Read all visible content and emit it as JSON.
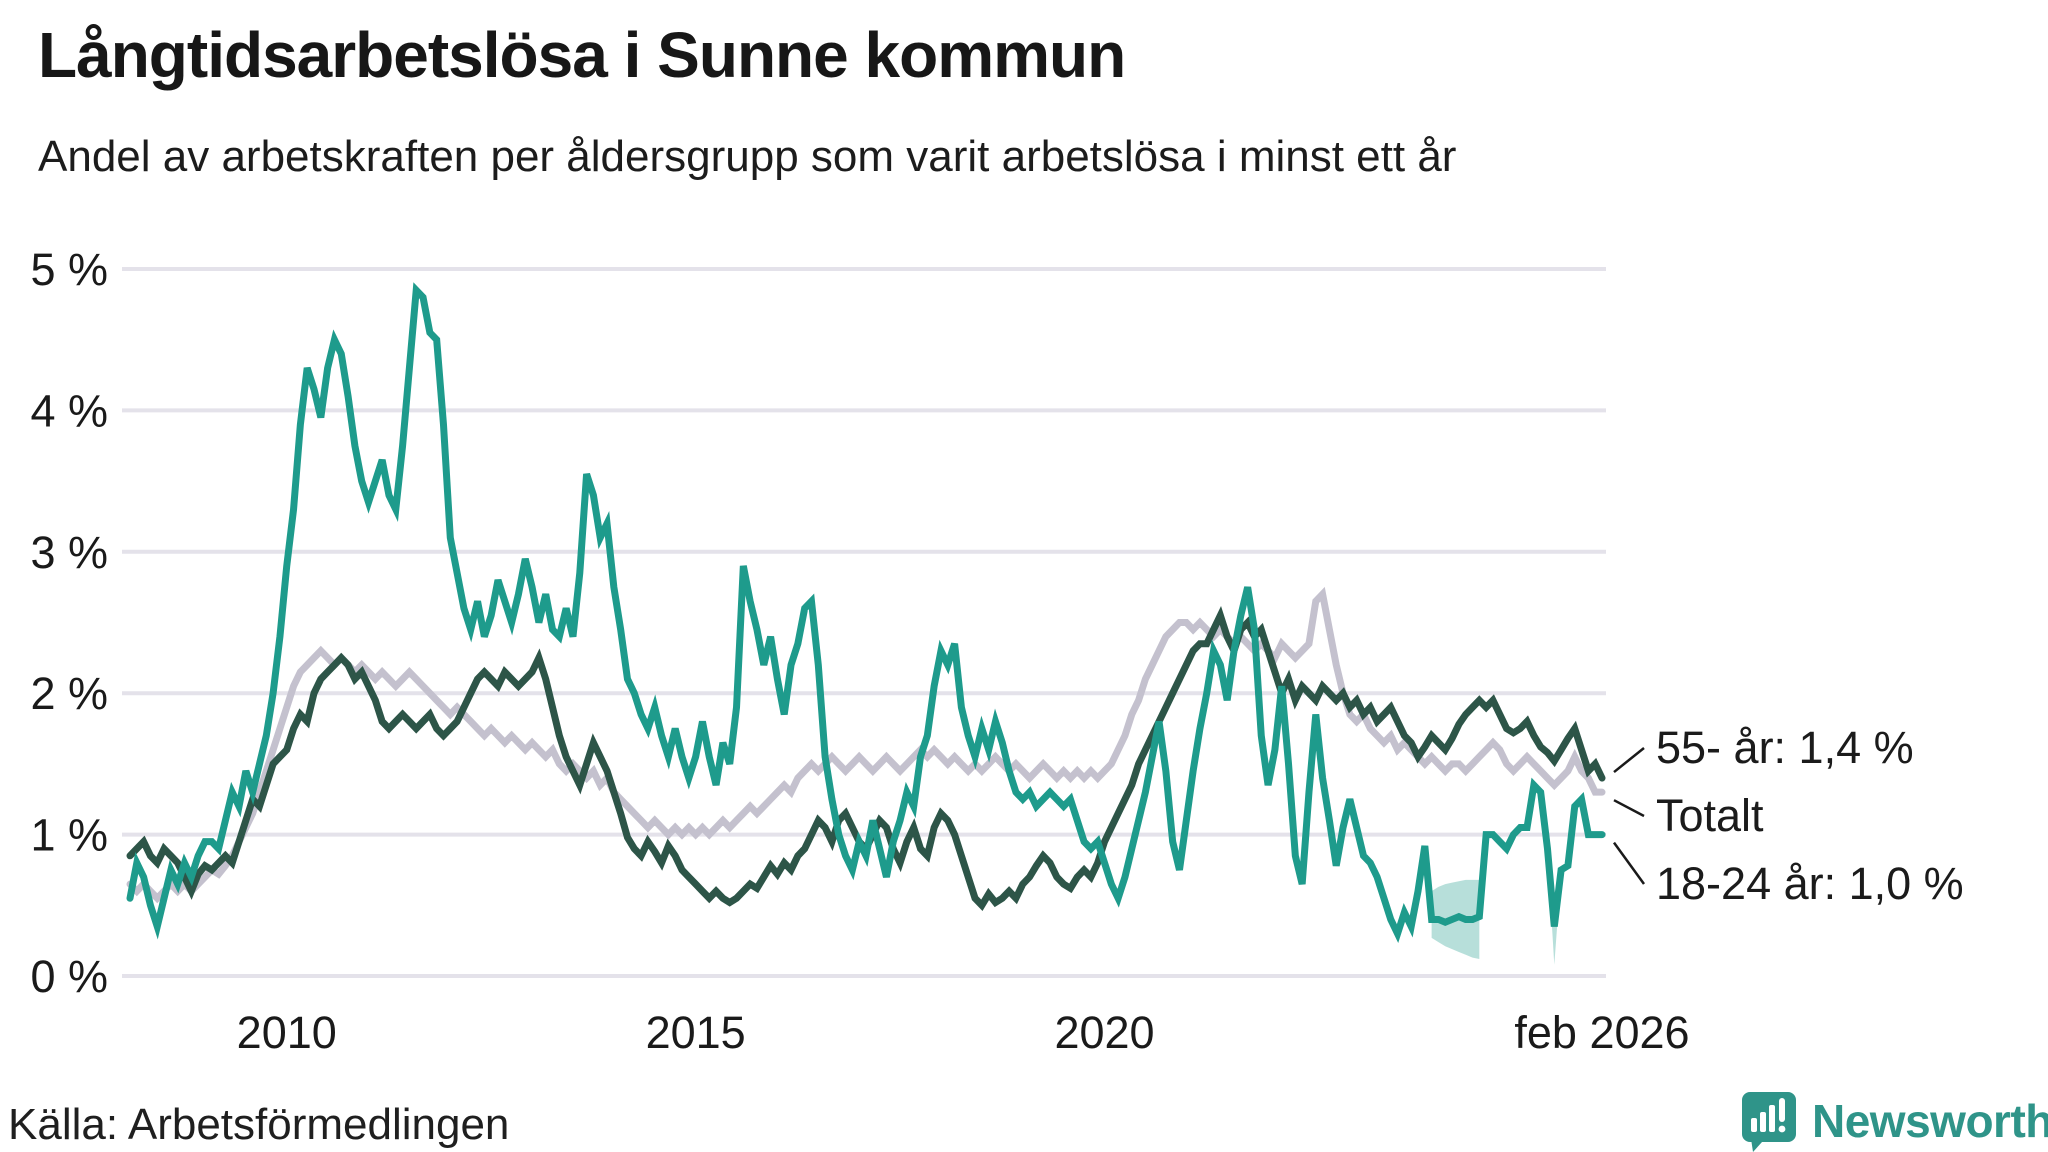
{
  "header": {
    "title": "Långtidsarbetslösa i Sunne kommun",
    "subtitle": "Andel av arbetskraften per åldersgrupp som varit arbetslösa i minst ett år"
  },
  "footer": {
    "source": "Källa: Arbetsförmedlingen",
    "brand": "Newsworthy"
  },
  "colors": {
    "teal": "#1e9b8c",
    "dark_green": "#2d5548",
    "gray": "#c4c1ce",
    "gridline": "#e4e2ea",
    "band_fill": "#1e9b8c",
    "leader": "#1a1a1a",
    "brand_teal": "#2f9489"
  },
  "chart_data": {
    "type": "line",
    "title": "Långtidsarbetslösa i Sunne kommun",
    "subtitle": "Andel av arbetskraften per åldersgrupp som varit arbetslösa i minst ett år",
    "unit": "% av arbetskraften",
    "freq": "monthly",
    "start": "2008-02",
    "end": "2026-02",
    "ylim": [
      0,
      5
    ],
    "grid": true,
    "yticks": [
      {
        "v": 5,
        "label": "5 %"
      },
      {
        "v": 4,
        "label": "4 %"
      },
      {
        "v": 3,
        "label": "3 %"
      },
      {
        "v": 2,
        "label": "2 %"
      },
      {
        "v": 1,
        "label": "1 %"
      },
      {
        "v": 0,
        "label": "0 %"
      }
    ],
    "xticks": [
      {
        "t": 23,
        "label": "2010"
      },
      {
        "t": 83,
        "label": "2015"
      },
      {
        "t": 143,
        "label": "2020"
      },
      {
        "t": 216,
        "label": "feb 2026"
      }
    ],
    "series": [
      {
        "name": "Totalt",
        "color_key": "gray",
        "values": [
          0.65,
          0.6,
          0.65,
          0.6,
          0.55,
          0.6,
          0.65,
          0.6,
          0.65,
          0.6,
          0.65,
          0.7,
          0.75,
          0.72,
          0.78,
          0.85,
          0.95,
          1.05,
          1.15,
          1.3,
          1.45,
          1.6,
          1.75,
          1.9,
          2.05,
          2.15,
          2.2,
          2.25,
          2.3,
          2.25,
          2.2,
          2.25,
          2.2,
          2.15,
          2.2,
          2.15,
          2.1,
          2.15,
          2.1,
          2.05,
          2.1,
          2.15,
          2.1,
          2.05,
          2.0,
          1.95,
          1.9,
          1.85,
          1.9,
          1.85,
          1.8,
          1.75,
          1.7,
          1.75,
          1.7,
          1.65,
          1.7,
          1.65,
          1.6,
          1.65,
          1.6,
          1.55,
          1.6,
          1.5,
          1.45,
          1.5,
          1.45,
          1.4,
          1.45,
          1.35,
          1.4,
          1.3,
          1.25,
          1.2,
          1.15,
          1.1,
          1.05,
          1.1,
          1.05,
          1.0,
          1.05,
          1.0,
          1.05,
          1.0,
          1.05,
          1.0,
          1.05,
          1.1,
          1.05,
          1.1,
          1.15,
          1.2,
          1.15,
          1.2,
          1.25,
          1.3,
          1.35,
          1.3,
          1.4,
          1.45,
          1.5,
          1.45,
          1.5,
          1.55,
          1.5,
          1.45,
          1.5,
          1.55,
          1.5,
          1.45,
          1.5,
          1.55,
          1.5,
          1.45,
          1.5,
          1.55,
          1.6,
          1.55,
          1.6,
          1.55,
          1.5,
          1.55,
          1.5,
          1.45,
          1.5,
          1.45,
          1.5,
          1.55,
          1.5,
          1.45,
          1.5,
          1.45,
          1.4,
          1.45,
          1.5,
          1.45,
          1.4,
          1.45,
          1.4,
          1.45,
          1.4,
          1.45,
          1.4,
          1.45,
          1.5,
          1.6,
          1.7,
          1.85,
          1.95,
          2.1,
          2.2,
          2.3,
          2.4,
          2.45,
          2.5,
          2.5,
          2.45,
          2.5,
          2.45,
          2.4,
          2.45,
          2.4,
          2.35,
          2.4,
          2.35,
          2.3,
          2.35,
          2.3,
          2.25,
          2.35,
          2.3,
          2.25,
          2.3,
          2.35,
          2.65,
          2.7,
          2.45,
          2.2,
          2.0,
          1.85,
          1.8,
          1.85,
          1.75,
          1.7,
          1.65,
          1.7,
          1.6,
          1.65,
          1.6,
          1.55,
          1.5,
          1.55,
          1.5,
          1.45,
          1.5,
          1.5,
          1.45,
          1.5,
          1.55,
          1.6,
          1.65,
          1.6,
          1.5,
          1.45,
          1.5,
          1.55,
          1.5,
          1.45,
          1.4,
          1.35,
          1.4,
          1.45,
          1.55,
          1.45,
          1.4,
          1.3,
          1.3
        ]
      },
      {
        "name": "55- år",
        "color_key": "dark_green",
        "end_value_label": "1,4 %",
        "values": [
          0.85,
          0.9,
          0.95,
          0.85,
          0.8,
          0.9,
          0.85,
          0.8,
          0.7,
          0.6,
          0.72,
          0.78,
          0.75,
          0.8,
          0.85,
          0.8,
          0.95,
          1.1,
          1.25,
          1.2,
          1.35,
          1.5,
          1.55,
          1.6,
          1.75,
          1.85,
          1.8,
          2.0,
          2.1,
          2.15,
          2.2,
          2.25,
          2.2,
          2.1,
          2.15,
          2.05,
          1.95,
          1.8,
          1.75,
          1.8,
          1.85,
          1.8,
          1.75,
          1.8,
          1.85,
          1.75,
          1.7,
          1.75,
          1.8,
          1.9,
          2.0,
          2.1,
          2.15,
          2.1,
          2.05,
          2.15,
          2.1,
          2.05,
          2.1,
          2.15,
          2.25,
          2.1,
          1.9,
          1.7,
          1.55,
          1.45,
          1.35,
          1.5,
          1.65,
          1.55,
          1.45,
          1.3,
          1.15,
          0.98,
          0.9,
          0.85,
          0.95,
          0.88,
          0.8,
          0.92,
          0.85,
          0.75,
          0.7,
          0.65,
          0.6,
          0.55,
          0.6,
          0.55,
          0.52,
          0.55,
          0.6,
          0.65,
          0.62,
          0.7,
          0.78,
          0.72,
          0.8,
          0.75,
          0.85,
          0.9,
          1.0,
          1.1,
          1.05,
          0.95,
          1.1,
          1.15,
          1.05,
          0.95,
          0.9,
          1.0,
          1.1,
          1.05,
          0.9,
          0.8,
          0.95,
          1.05,
          0.9,
          0.85,
          1.05,
          1.15,
          1.1,
          1.0,
          0.85,
          0.7,
          0.55,
          0.5,
          0.58,
          0.52,
          0.55,
          0.6,
          0.55,
          0.65,
          0.7,
          0.78,
          0.85,
          0.8,
          0.7,
          0.65,
          0.62,
          0.7,
          0.75,
          0.7,
          0.8,
          0.95,
          1.05,
          1.15,
          1.25,
          1.35,
          1.5,
          1.6,
          1.7,
          1.8,
          1.9,
          2.0,
          2.1,
          2.2,
          2.3,
          2.35,
          2.35,
          2.45,
          2.55,
          2.4,
          2.3,
          2.45,
          2.5,
          2.4,
          2.45,
          2.3,
          2.15,
          2.0,
          2.1,
          1.95,
          2.05,
          2.0,
          1.95,
          2.05,
          2.0,
          1.95,
          2.0,
          1.9,
          1.95,
          1.85,
          1.9,
          1.8,
          1.85,
          1.9,
          1.8,
          1.7,
          1.65,
          1.55,
          1.62,
          1.7,
          1.65,
          1.6,
          1.68,
          1.78,
          1.85,
          1.9,
          1.95,
          1.9,
          1.95,
          1.85,
          1.75,
          1.72,
          1.75,
          1.8,
          1.7,
          1.62,
          1.58,
          1.52,
          1.6,
          1.68,
          1.75,
          1.6,
          1.45,
          1.5,
          1.4
        ]
      },
      {
        "name": "18-24 år",
        "color_key": "teal",
        "end_value_label": "1,0 %",
        "values": [
          0.55,
          0.8,
          0.7,
          0.5,
          0.35,
          0.55,
          0.75,
          0.65,
          0.8,
          0.7,
          0.85,
          0.95,
          0.95,
          0.9,
          1.1,
          1.3,
          1.2,
          1.45,
          1.3,
          1.5,
          1.7,
          2.0,
          2.4,
          2.9,
          3.3,
          3.9,
          4.3,
          4.15,
          3.95,
          4.3,
          4.5,
          4.4,
          4.1,
          3.75,
          3.5,
          3.35,
          3.5,
          3.65,
          3.4,
          3.3,
          3.75,
          4.3,
          4.85,
          4.8,
          4.55,
          4.5,
          3.9,
          3.1,
          2.85,
          2.6,
          2.45,
          2.65,
          2.4,
          2.55,
          2.8,
          2.65,
          2.5,
          2.7,
          2.95,
          2.75,
          2.5,
          2.7,
          2.45,
          2.4,
          2.6,
          2.4,
          2.85,
          3.55,
          3.4,
          3.1,
          3.2,
          2.75,
          2.45,
          2.1,
          2.0,
          1.85,
          1.75,
          1.9,
          1.7,
          1.55,
          1.75,
          1.55,
          1.4,
          1.55,
          1.8,
          1.55,
          1.35,
          1.65,
          1.5,
          1.9,
          2.9,
          2.65,
          2.45,
          2.2,
          2.4,
          2.1,
          1.85,
          2.2,
          2.35,
          2.6,
          2.65,
          2.2,
          1.55,
          1.25,
          1.0,
          0.85,
          0.75,
          0.95,
          0.85,
          1.1,
          0.9,
          0.7,
          0.95,
          1.1,
          1.3,
          1.2,
          1.55,
          1.7,
          2.05,
          2.3,
          2.2,
          2.35,
          1.9,
          1.7,
          1.55,
          1.75,
          1.6,
          1.8,
          1.65,
          1.45,
          1.3,
          1.25,
          1.3,
          1.2,
          1.25,
          1.3,
          1.25,
          1.2,
          1.25,
          1.1,
          0.95,
          0.9,
          0.95,
          0.8,
          0.65,
          0.55,
          0.7,
          0.9,
          1.1,
          1.3,
          1.55,
          1.8,
          1.45,
          0.95,
          0.75,
          1.1,
          1.45,
          1.75,
          2.0,
          2.3,
          2.2,
          1.95,
          2.3,
          2.55,
          2.75,
          2.45,
          1.7,
          1.35,
          1.6,
          2.05,
          1.5,
          0.85,
          0.65,
          1.3,
          1.85,
          1.4,
          1.1,
          0.78,
          1.05,
          1.25,
          1.05,
          0.85,
          0.8,
          0.7,
          0.55,
          0.4,
          0.3,
          0.45,
          0.35,
          0.6,
          0.92,
          0.4,
          0.4,
          0.38,
          0.4,
          0.42,
          0.4,
          0.4,
          0.42,
          1.0,
          1.0,
          0.95,
          0.9,
          1.0,
          1.05,
          1.05,
          1.35,
          1.3,
          0.9,
          0.35,
          0.75,
          0.78,
          1.2,
          1.25,
          1.0,
          1.0,
          1.0
        ]
      }
    ],
    "uncertainty_bands": [
      {
        "series": "18-24 år",
        "t_start": 191,
        "hi": [
          0.6,
          0.63,
          0.65,
          0.66,
          0.67,
          0.68,
          0.68,
          0.68
        ],
        "lo": [
          0.27,
          0.24,
          0.21,
          0.19,
          0.17,
          0.15,
          0.13,
          0.12
        ]
      },
      {
        "series": "18-24 år",
        "t_start": 208,
        "hi": [
          0.9,
          0.36,
          0.75
        ],
        "lo": [
          0.88,
          0.08,
          0.73
        ]
      }
    ],
    "annotations": [
      {
        "id": "age55",
        "label": "55- år: 1,4 %",
        "series": "55- år"
      },
      {
        "id": "total",
        "label": "Totalt",
        "series": "Totalt"
      },
      {
        "id": "age1824",
        "label": "18-24 år: 1,0 %",
        "series": "18-24 år"
      }
    ]
  }
}
